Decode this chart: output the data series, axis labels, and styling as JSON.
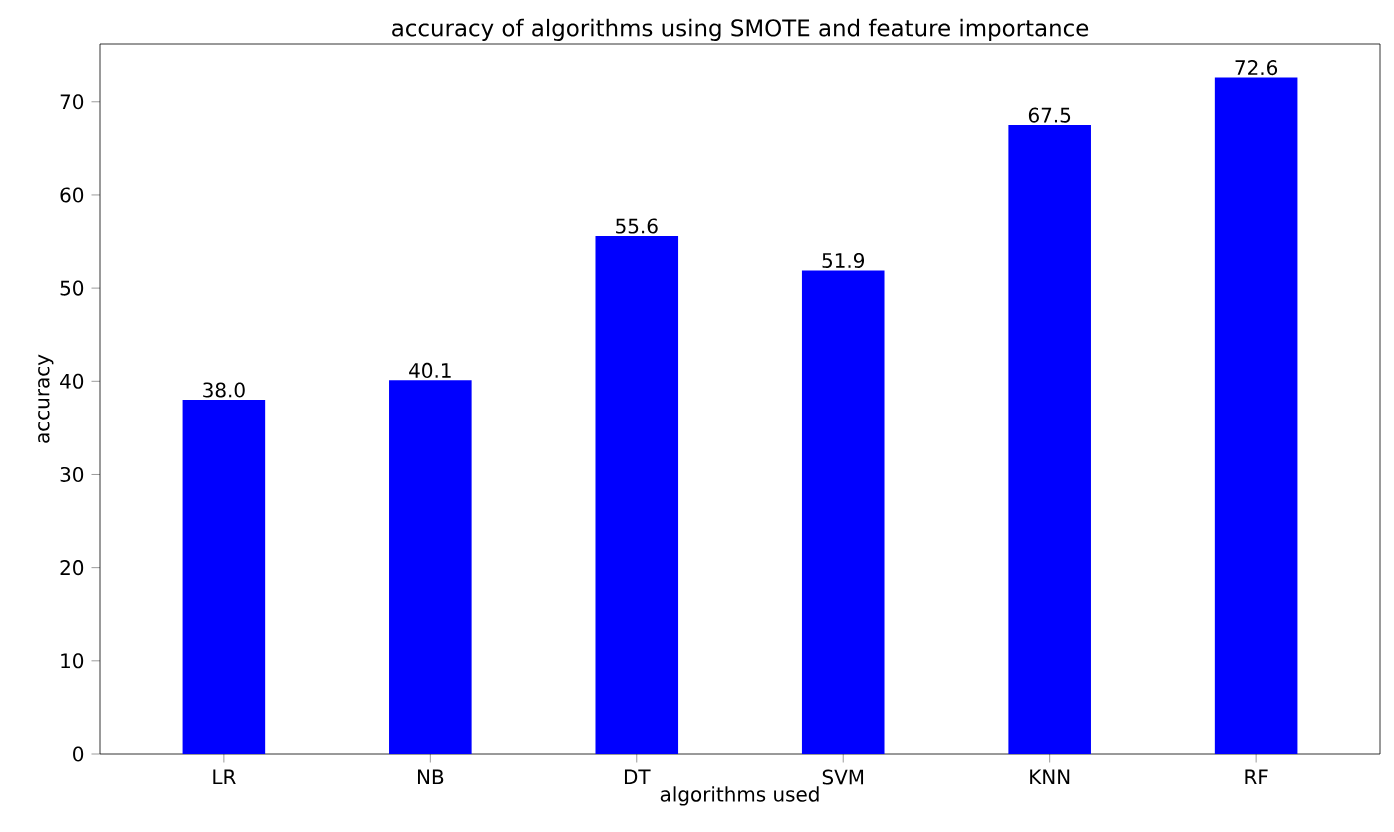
{
  "chart_data": {
    "type": "bar",
    "title": "accuracy of algorithms using SMOTE and feature importance",
    "xlabel": "algorithms used",
    "ylabel": "accuracy",
    "categories": [
      "LR",
      "NB",
      "DT",
      "SVM",
      "KNN",
      "RF"
    ],
    "values": [
      38.0,
      40.1,
      55.6,
      51.9,
      67.5,
      72.6
    ],
    "value_labels": [
      "38.0",
      "40.1",
      "55.6",
      "51.9",
      "67.5",
      "72.6"
    ],
    "color": "#0000ff",
    "ylim": [
      0,
      76.2
    ],
    "yticks": [
      0,
      10,
      20,
      30,
      40,
      50,
      60,
      70
    ]
  }
}
